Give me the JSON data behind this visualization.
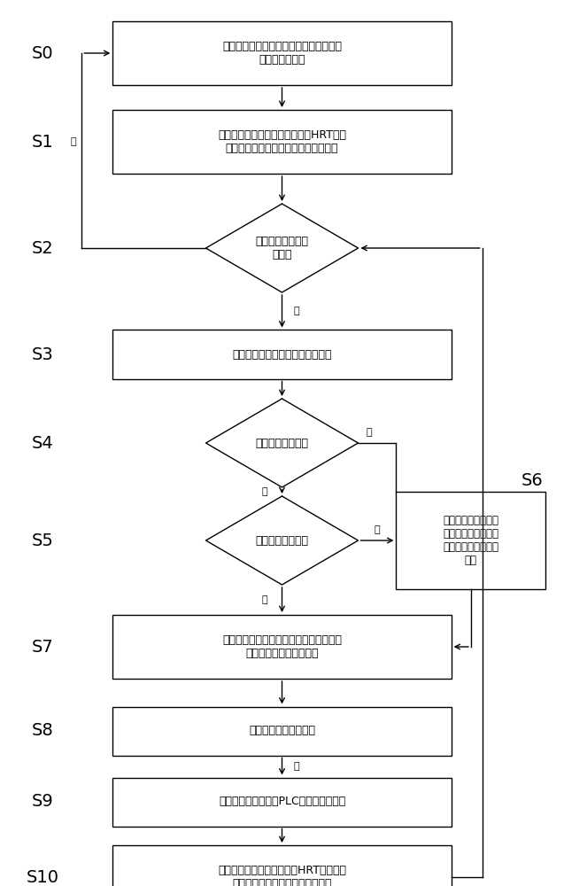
{
  "bg_color": "#ffffff",
  "line_color": "#000000",
  "s0_text": "实时获取设备运行数据、化验数据、工艺\n数据等基础数据",
  "s1_text": "定时计算污泥负荷、容积负荷、HRT、生\n化回流比、硝酸盐回流比、膜出水得率",
  "s2_text": "是否到达最佳工况\n缓冲值",
  "s3_text": "计算到达最佳工况阈值的剩余时长",
  "s4_text": "是否可维持至谷段",
  "s5_text": "是否可维持至平段",
  "s6_text": "系统基于电峰谷平、\n设备能耗等确认最优\n控制方案，生成控制\n计划",
  "s7_text": "系统计算保持在最佳工况缓冲值内的控制\n方案，生成步进控制计划",
  "s8_text": "系统监测控制计划状态",
  "s9_text": "系统下发控制指令至PLC，执行控制设备",
  "s10_text": "计算污泥负荷、容积负荷、HRT、生化回\n流比、硝酸盐回流比、膜出水得率",
  "yes_text": "是",
  "no_text": "否",
  "label_fontsize": 14,
  "content_fontsize": 9,
  "small_fontsize": 8
}
